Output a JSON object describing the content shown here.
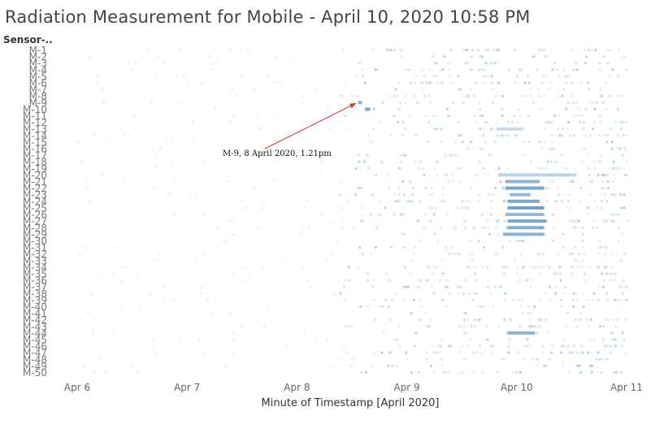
{
  "title": "Radiation Measurement for Mobile - April 10, 2020 10:58 PM",
  "chart_data": {
    "type": "heatmap",
    "row_header": "Sensor-..",
    "xlabel": "Minute of Timestamp [April 2020]",
    "x_ticks": [
      "Apr 6",
      "Apr 7",
      "Apr 8",
      "Apr 9",
      "Apr 10",
      "Apr 11"
    ],
    "xlim": [
      "2020-04-06",
      "2020-04-11"
    ],
    "rows": [
      "M-1",
      "M-2",
      "M-3",
      "M-4",
      "M-5",
      "M-6",
      "M-7",
      "M-8",
      "M-9",
      "M-10",
      "M-11",
      "M-12",
      "M-13",
      "M-14",
      "M-15",
      "M-16",
      "M-17",
      "M-18",
      "M-19",
      "M-20",
      "M-21",
      "M-22",
      "M-23",
      "M-24",
      "M-25",
      "M-26",
      "M-27",
      "M-28",
      "M-29",
      "M-30",
      "M-31",
      "M-32",
      "M-33",
      "M-34",
      "M-35",
      "M-36",
      "M-37",
      "M-38",
      "M-39",
      "M-40",
      "M-41",
      "M-42",
      "M-43",
      "M-44",
      "M-45",
      "M-46",
      "M-47",
      "M-48",
      "M-49",
      "M-50"
    ],
    "color_scale": {
      "low": "#eef5fb",
      "high": "#2f6fa8"
    },
    "highlighted_segments": [
      {
        "sensor": "M-9",
        "start": "Apr 8 13:21",
        "end": "Apr 8 14:10",
        "level": 0.55
      },
      {
        "sensor": "M-10",
        "start": "Apr 8 14:50",
        "end": "Apr 8 16:00",
        "level": 0.6
      },
      {
        "sensor": "M-13",
        "start": "Apr 9 19:30",
        "end": "Apr 10 01:00",
        "level": 0.2
      },
      {
        "sensor": "M-20",
        "start": "Apr 9 20:00",
        "end": "Apr 10 13:00",
        "level": 0.25
      },
      {
        "sensor": "M-21",
        "start": "Apr 9 21:30",
        "end": "Apr 10 05:00",
        "level": 0.5
      },
      {
        "sensor": "M-22",
        "start": "Apr 9 21:30",
        "end": "Apr 10 06:00",
        "level": 0.6
      },
      {
        "sensor": "M-23",
        "start": "Apr 9 22:30",
        "end": "Apr 10 03:00",
        "level": 0.45
      },
      {
        "sensor": "M-24",
        "start": "Apr 9 22:00",
        "end": "Apr 10 05:00",
        "level": 0.6
      },
      {
        "sensor": "M-25",
        "start": "Apr 9 22:00",
        "end": "Apr 10 06:00",
        "level": 0.65
      },
      {
        "sensor": "M-26",
        "start": "Apr 9 21:30",
        "end": "Apr 10 06:00",
        "level": 0.45
      },
      {
        "sensor": "M-27",
        "start": "Apr 9 22:00",
        "end": "Apr 10 06:30",
        "level": 0.6
      },
      {
        "sensor": "M-28",
        "start": "Apr 9 22:00",
        "end": "Apr 10 06:00",
        "level": 0.55
      },
      {
        "sensor": "M-29",
        "start": "Apr 9 21:00",
        "end": "Apr 10 06:00",
        "level": 0.5
      },
      {
        "sensor": "M-44",
        "start": "Apr 9 22:00",
        "end": "Apr 10 04:00",
        "level": 0.5
      }
    ],
    "annotation": {
      "text": "M-9, 8 April 2020, 1.21pm",
      "sensor": "M-9",
      "time": "Apr 8 13:21"
    }
  }
}
